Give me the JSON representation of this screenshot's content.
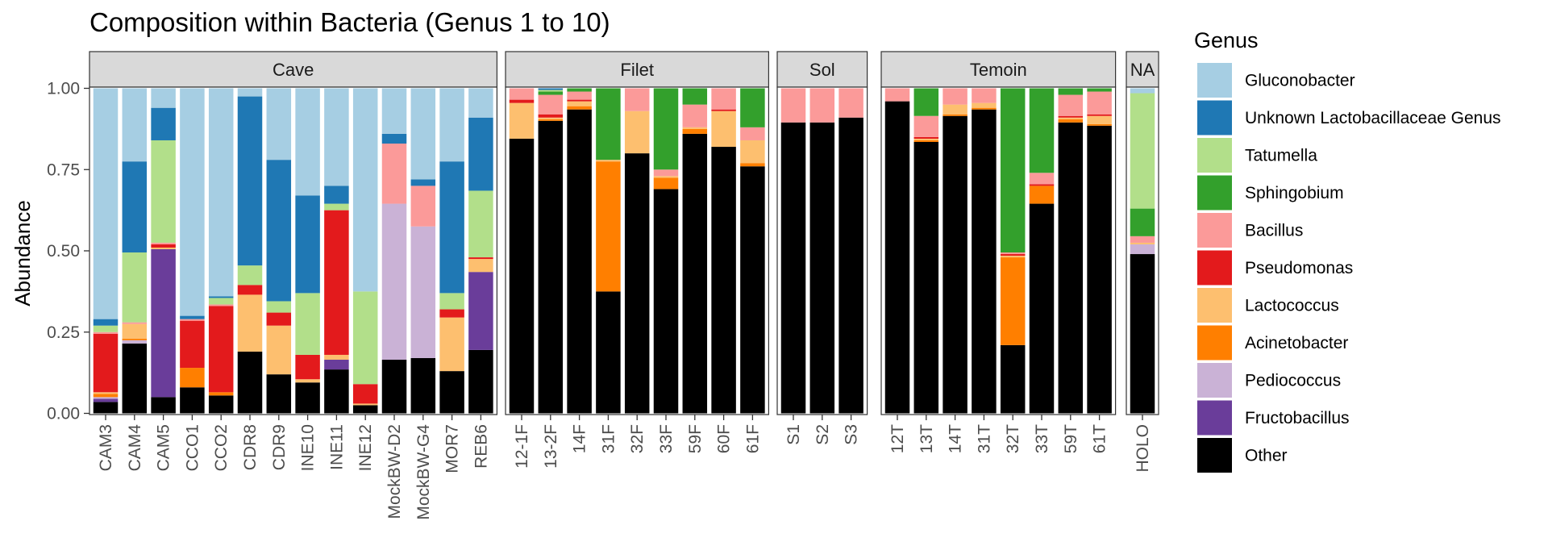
{
  "chart_data": {
    "type": "bar",
    "stacked": true,
    "title": "Composition within Bacteria (Genus 1 to 10)",
    "ylabel": "Abundance",
    "xlabel": "",
    "ylim": [
      0,
      1
    ],
    "yticks": [
      "0.00",
      "0.25",
      "0.50",
      "0.75",
      "1.00"
    ],
    "legend": {
      "title": "Genus",
      "position": "right",
      "items": [
        {
          "name": "Gluconobacter",
          "color": "#a6cee3"
        },
        {
          "name": "Unknown Lactobacillaceae Genus",
          "color": "#1f78b4"
        },
        {
          "name": "Tatumella",
          "color": "#b2df8a"
        },
        {
          "name": "Sphingobium",
          "color": "#33a02c"
        },
        {
          "name": "Bacillus",
          "color": "#fb9a99"
        },
        {
          "name": "Pseudomonas",
          "color": "#e31a1c"
        },
        {
          "name": "Lactococcus",
          "color": "#fdbf6f"
        },
        {
          "name": "Acinetobacter",
          "color": "#ff7f00"
        },
        {
          "name": "Pediococcus",
          "color": "#cab2d6"
        },
        {
          "name": "Fructobacillus",
          "color": "#6a3d9a"
        },
        {
          "name": "Other",
          "color": "#000000"
        }
      ]
    },
    "stack_order_bottom_to_top": [
      "Other",
      "Fructobacillus",
      "Pediococcus",
      "Acinetobacter",
      "Lactococcus",
      "Pseudomonas",
      "Bacillus",
      "Sphingobium",
      "Tatumella",
      "Unknown Lactobacillaceae Genus",
      "Gluconobacter"
    ],
    "facets": [
      {
        "label": "Cave",
        "samples": [
          {
            "name": "CAM3",
            "values": {
              "Other": 0.035,
              "Fructobacillus": 0.01,
              "Pediococcus": 0.005,
              "Acinetobacter": 0.01,
              "Lactococcus": 0.005,
              "Pseudomonas": 0.18,
              "Bacillus": 0.005,
              "Sphingobium": 0.0,
              "Tatumella": 0.02,
              "Unknown Lactobacillaceae Genus": 0.02,
              "Gluconobacter": 0.71
            }
          },
          {
            "name": "CAM4",
            "values": {
              "Other": 0.215,
              "Fructobacillus": 0.0,
              "Pediococcus": 0.01,
              "Acinetobacter": 0.005,
              "Lactococcus": 0.045,
              "Pseudomonas": 0.0,
              "Bacillus": 0.005,
              "Sphingobium": 0.0,
              "Tatumella": 0.215,
              "Unknown Lactobacillaceae Genus": 0.28,
              "Gluconobacter": 0.225
            }
          },
          {
            "name": "CAM5",
            "values": {
              "Other": 0.05,
              "Fructobacillus": 0.455,
              "Pediococcus": 0.0,
              "Acinetobacter": 0.0,
              "Lactococcus": 0.005,
              "Pseudomonas": 0.01,
              "Bacillus": 0.005,
              "Sphingobium": 0.0,
              "Tatumella": 0.315,
              "Unknown Lactobacillaceae Genus": 0.1,
              "Gluconobacter": 0.06
            }
          },
          {
            "name": "CCO1",
            "values": {
              "Other": 0.08,
              "Fructobacillus": 0.0,
              "Pediococcus": 0.0,
              "Acinetobacter": 0.06,
              "Lactococcus": 0.0,
              "Pseudomonas": 0.145,
              "Bacillus": 0.005,
              "Sphingobium": 0.0,
              "Tatumella": 0.0,
              "Unknown Lactobacillaceae Genus": 0.01,
              "Gluconobacter": 0.7
            }
          },
          {
            "name": "CCO2",
            "values": {
              "Other": 0.055,
              "Fructobacillus": 0.0,
              "Pediococcus": 0.0,
              "Acinetobacter": 0.01,
              "Lactococcus": 0.0,
              "Pseudomonas": 0.265,
              "Bacillus": 0.005,
              "Sphingobium": 0.0,
              "Tatumella": 0.02,
              "Unknown Lactobacillaceae Genus": 0.005,
              "Gluconobacter": 0.64
            }
          },
          {
            "name": "CDR8",
            "values": {
              "Other": 0.19,
              "Fructobacillus": 0.0,
              "Pediococcus": 0.0,
              "Acinetobacter": 0.0,
              "Lactococcus": 0.175,
              "Pseudomonas": 0.03,
              "Bacillus": 0.0,
              "Sphingobium": 0.0,
              "Tatumella": 0.06,
              "Unknown Lactobacillaceae Genus": 0.52,
              "Gluconobacter": 0.025
            }
          },
          {
            "name": "CDR9",
            "values": {
              "Other": 0.12,
              "Fructobacillus": 0.0,
              "Pediococcus": 0.0,
              "Acinetobacter": 0.0,
              "Lactococcus": 0.15,
              "Pseudomonas": 0.04,
              "Bacillus": 0.0,
              "Sphingobium": 0.0,
              "Tatumella": 0.035,
              "Unknown Lactobacillaceae Genus": 0.435,
              "Gluconobacter": 0.22
            }
          },
          {
            "name": "INE10",
            "values": {
              "Other": 0.095,
              "Fructobacillus": 0.0,
              "Pediococcus": 0.0,
              "Acinetobacter": 0.0,
              "Lactococcus": 0.01,
              "Pseudomonas": 0.075,
              "Bacillus": 0.0,
              "Sphingobium": 0.0,
              "Tatumella": 0.19,
              "Unknown Lactobacillaceae Genus": 0.3,
              "Gluconobacter": 0.33
            }
          },
          {
            "name": "INE11",
            "values": {
              "Other": 0.135,
              "Fructobacillus": 0.03,
              "Pediococcus": 0.0,
              "Acinetobacter": 0.0,
              "Lactococcus": 0.015,
              "Pseudomonas": 0.445,
              "Bacillus": 0.0,
              "Sphingobium": 0.0,
              "Tatumella": 0.02,
              "Unknown Lactobacillaceae Genus": 0.055,
              "Gluconobacter": 0.3
            }
          },
          {
            "name": "INE12",
            "values": {
              "Other": 0.025,
              "Fructobacillus": 0.0,
              "Pediococcus": 0.0,
              "Acinetobacter": 0.0,
              "Lactococcus": 0.005,
              "Pseudomonas": 0.06,
              "Bacillus": 0.0,
              "Sphingobium": 0.0,
              "Tatumella": 0.285,
              "Unknown Lactobacillaceae Genus": 0.0,
              "Gluconobacter": 0.625
            }
          },
          {
            "name": "MockBW-D2",
            "values": {
              "Other": 0.165,
              "Fructobacillus": 0.0,
              "Pediococcus": 0.48,
              "Acinetobacter": 0.0,
              "Lactococcus": 0.0,
              "Pseudomonas": 0.0,
              "Bacillus": 0.185,
              "Sphingobium": 0.0,
              "Tatumella": 0.0,
              "Unknown Lactobacillaceae Genus": 0.03,
              "Gluconobacter": 0.14
            }
          },
          {
            "name": "MockBW-G4",
            "values": {
              "Other": 0.17,
              "Fructobacillus": 0.0,
              "Pediococcus": 0.405,
              "Acinetobacter": 0.0,
              "Lactococcus": 0.0,
              "Pseudomonas": 0.0,
              "Bacillus": 0.125,
              "Sphingobium": 0.0,
              "Tatumella": 0.0,
              "Unknown Lactobacillaceae Genus": 0.02,
              "Gluconobacter": 0.28
            }
          },
          {
            "name": "MOR7",
            "values": {
              "Other": 0.13,
              "Fructobacillus": 0.0,
              "Pediococcus": 0.0,
              "Acinetobacter": 0.0,
              "Lactococcus": 0.165,
              "Pseudomonas": 0.025,
              "Bacillus": 0.0,
              "Sphingobium": 0.0,
              "Tatumella": 0.05,
              "Unknown Lactobacillaceae Genus": 0.405,
              "Gluconobacter": 0.225
            }
          },
          {
            "name": "REB6",
            "values": {
              "Other": 0.195,
              "Fructobacillus": 0.24,
              "Pediococcus": 0.0,
              "Acinetobacter": 0.0,
              "Lactococcus": 0.04,
              "Pseudomonas": 0.005,
              "Bacillus": 0.0,
              "Sphingobium": 0.0,
              "Tatumella": 0.205,
              "Unknown Lactobacillaceae Genus": 0.225,
              "Gluconobacter": 0.09
            }
          }
        ]
      },
      {
        "label": "Filet",
        "samples": [
          {
            "name": "12-1F",
            "values": {
              "Other": 0.845,
              "Fructobacillus": 0.0,
              "Pediococcus": 0.0,
              "Acinetobacter": 0.0,
              "Lactococcus": 0.11,
              "Pseudomonas": 0.01,
              "Bacillus": 0.035,
              "Sphingobium": 0.0,
              "Tatumella": 0.0,
              "Unknown Lactobacillaceae Genus": 0.0,
              "Gluconobacter": 0.0
            }
          },
          {
            "name": "13-2F",
            "values": {
              "Other": 0.9,
              "Fructobacillus": 0.0,
              "Pediococcus": 0.0,
              "Acinetobacter": 0.005,
              "Lactococcus": 0.005,
              "Pseudomonas": 0.01,
              "Bacillus": 0.06,
              "Sphingobium": 0.01,
              "Tatumella": 0.005,
              "Unknown Lactobacillaceae Genus": 0.005,
              "Gluconobacter": 0.0
            }
          },
          {
            "name": "14F",
            "values": {
              "Other": 0.935,
              "Fructobacillus": 0.0,
              "Pediococcus": 0.0,
              "Acinetobacter": 0.01,
              "Lactococcus": 0.015,
              "Pseudomonas": 0.005,
              "Bacillus": 0.025,
              "Sphingobium": 0.01,
              "Tatumella": 0.0,
              "Unknown Lactobacillaceae Genus": 0.0,
              "Gluconobacter": 0.0
            }
          },
          {
            "name": "31F",
            "values": {
              "Other": 0.375,
              "Fructobacillus": 0.0,
              "Pediococcus": 0.0,
              "Acinetobacter": 0.4,
              "Lactococcus": 0.005,
              "Pseudomonas": 0.0,
              "Bacillus": 0.0,
              "Sphingobium": 0.22,
              "Tatumella": 0.0,
              "Unknown Lactobacillaceae Genus": 0.0,
              "Gluconobacter": 0.0
            }
          },
          {
            "name": "32F",
            "values": {
              "Other": 0.8,
              "Fructobacillus": 0.0,
              "Pediococcus": 0.0,
              "Acinetobacter": 0.0,
              "Lactococcus": 0.13,
              "Pseudomonas": 0.0,
              "Bacillus": 0.07,
              "Sphingobium": 0.0,
              "Tatumella": 0.0,
              "Unknown Lactobacillaceae Genus": 0.0,
              "Gluconobacter": 0.0
            }
          },
          {
            "name": "33F",
            "values": {
              "Other": 0.69,
              "Fructobacillus": 0.0,
              "Pediococcus": 0.0,
              "Acinetobacter": 0.035,
              "Lactococcus": 0.005,
              "Pseudomonas": 0.0,
              "Bacillus": 0.02,
              "Sphingobium": 0.25,
              "Tatumella": 0.0,
              "Unknown Lactobacillaceae Genus": 0.0,
              "Gluconobacter": 0.0
            }
          },
          {
            "name": "59F",
            "values": {
              "Other": 0.86,
              "Fructobacillus": 0.0,
              "Pediococcus": 0.0,
              "Acinetobacter": 0.015,
              "Lactococcus": 0.005,
              "Pseudomonas": 0.0,
              "Bacillus": 0.07,
              "Sphingobium": 0.05,
              "Tatumella": 0.0,
              "Unknown Lactobacillaceae Genus": 0.0,
              "Gluconobacter": 0.0
            }
          },
          {
            "name": "60F",
            "values": {
              "Other": 0.82,
              "Fructobacillus": 0.0,
              "Pediococcus": 0.0,
              "Acinetobacter": 0.0,
              "Lactococcus": 0.11,
              "Pseudomonas": 0.005,
              "Bacillus": 0.065,
              "Sphingobium": 0.0,
              "Tatumella": 0.0,
              "Unknown Lactobacillaceae Genus": 0.0,
              "Gluconobacter": 0.0
            }
          },
          {
            "name": "61F",
            "values": {
              "Other": 0.76,
              "Fructobacillus": 0.0,
              "Pediococcus": 0.0,
              "Acinetobacter": 0.01,
              "Lactococcus": 0.07,
              "Pseudomonas": 0.0,
              "Bacillus": 0.04,
              "Sphingobium": 0.12,
              "Tatumella": 0.0,
              "Unknown Lactobacillaceae Genus": 0.0,
              "Gluconobacter": 0.0
            }
          }
        ]
      },
      {
        "label": "Sol",
        "samples": [
          {
            "name": "S1",
            "values": {
              "Other": 0.895,
              "Fructobacillus": 0.0,
              "Pediococcus": 0.0,
              "Acinetobacter": 0.0,
              "Lactococcus": 0.0,
              "Pseudomonas": 0.0,
              "Bacillus": 0.105,
              "Sphingobium": 0.0,
              "Tatumella": 0.0,
              "Unknown Lactobacillaceae Genus": 0.0,
              "Gluconobacter": 0.0
            }
          },
          {
            "name": "S2",
            "values": {
              "Other": 0.895,
              "Fructobacillus": 0.0,
              "Pediococcus": 0.0,
              "Acinetobacter": 0.0,
              "Lactococcus": 0.0,
              "Pseudomonas": 0.0,
              "Bacillus": 0.105,
              "Sphingobium": 0.0,
              "Tatumella": 0.0,
              "Unknown Lactobacillaceae Genus": 0.0,
              "Gluconobacter": 0.0
            }
          },
          {
            "name": "S3",
            "values": {
              "Other": 0.91,
              "Fructobacillus": 0.0,
              "Pediococcus": 0.0,
              "Acinetobacter": 0.0,
              "Lactococcus": 0.0,
              "Pseudomonas": 0.0,
              "Bacillus": 0.09,
              "Sphingobium": 0.0,
              "Tatumella": 0.0,
              "Unknown Lactobacillaceae Genus": 0.0,
              "Gluconobacter": 0.0
            }
          }
        ]
      },
      {
        "label": "Temoin",
        "samples": [
          {
            "name": "12T",
            "values": {
              "Other": 0.96,
              "Fructobacillus": 0.0,
              "Pediococcus": 0.0,
              "Acinetobacter": 0.0,
              "Lactococcus": 0.0,
              "Pseudomonas": 0.0,
              "Bacillus": 0.04,
              "Sphingobium": 0.0,
              "Tatumella": 0.0,
              "Unknown Lactobacillaceae Genus": 0.0,
              "Gluconobacter": 0.0
            }
          },
          {
            "name": "13T",
            "values": {
              "Other": 0.835,
              "Fructobacillus": 0.0,
              "Pediococcus": 0.0,
              "Acinetobacter": 0.005,
              "Lactococcus": 0.005,
              "Pseudomonas": 0.005,
              "Bacillus": 0.065,
              "Sphingobium": 0.085,
              "Tatumella": 0.0,
              "Unknown Lactobacillaceae Genus": 0.0,
              "Gluconobacter": 0.0
            }
          },
          {
            "name": "14T",
            "values": {
              "Other": 0.915,
              "Fructobacillus": 0.0,
              "Pediococcus": 0.0,
              "Acinetobacter": 0.005,
              "Lactococcus": 0.03,
              "Pseudomonas": 0.0,
              "Bacillus": 0.05,
              "Sphingobium": 0.0,
              "Tatumella": 0.0,
              "Unknown Lactobacillaceae Genus": 0.0,
              "Gluconobacter": 0.0
            }
          },
          {
            "name": "31T",
            "values": {
              "Other": 0.935,
              "Fructobacillus": 0.0,
              "Pediococcus": 0.0,
              "Acinetobacter": 0.005,
              "Lactococcus": 0.015,
              "Pseudomonas": 0.0,
              "Bacillus": 0.045,
              "Sphingobium": 0.0,
              "Tatumella": 0.0,
              "Unknown Lactobacillaceae Genus": 0.0,
              "Gluconobacter": 0.0
            }
          },
          {
            "name": "32T",
            "values": {
              "Other": 0.21,
              "Fructobacillus": 0.0,
              "Pediococcus": 0.0,
              "Acinetobacter": 0.27,
              "Lactococcus": 0.005,
              "Pseudomonas": 0.005,
              "Bacillus": 0.005,
              "Sphingobium": 0.505,
              "Tatumella": 0.0,
              "Unknown Lactobacillaceae Genus": 0.0,
              "Gluconobacter": 0.0
            }
          },
          {
            "name": "33T",
            "values": {
              "Other": 0.645,
              "Fructobacillus": 0.0,
              "Pediococcus": 0.0,
              "Acinetobacter": 0.055,
              "Lactococcus": 0.0,
              "Pseudomonas": 0.005,
              "Bacillus": 0.035,
              "Sphingobium": 0.26,
              "Tatumella": 0.0,
              "Unknown Lactobacillaceae Genus": 0.0,
              "Gluconobacter": 0.0
            }
          },
          {
            "name": "59T",
            "values": {
              "Other": 0.895,
              "Fructobacillus": 0.0,
              "Pediococcus": 0.0,
              "Acinetobacter": 0.01,
              "Lactococcus": 0.005,
              "Pseudomonas": 0.005,
              "Bacillus": 0.065,
              "Sphingobium": 0.02,
              "Tatumella": 0.0,
              "Unknown Lactobacillaceae Genus": 0.0,
              "Gluconobacter": 0.0
            }
          },
          {
            "name": "61T",
            "values": {
              "Other": 0.885,
              "Fructobacillus": 0.0,
              "Pediococcus": 0.0,
              "Acinetobacter": 0.005,
              "Lactococcus": 0.025,
              "Pseudomonas": 0.005,
              "Bacillus": 0.07,
              "Sphingobium": 0.01,
              "Tatumella": 0.0,
              "Unknown Lactobacillaceae Genus": 0.0,
              "Gluconobacter": 0.0
            }
          }
        ]
      },
      {
        "label": "NA",
        "samples": [
          {
            "name": "HOLO",
            "values": {
              "Other": 0.49,
              "Fructobacillus": 0.0,
              "Pediococcus": 0.03,
              "Acinetobacter": 0.0,
              "Lactococcus": 0.005,
              "Pseudomonas": 0.0,
              "Bacillus": 0.02,
              "Sphingobium": 0.085,
              "Tatumella": 0.355,
              "Unknown Lactobacillaceae Genus": 0.0,
              "Gluconobacter": 0.015
            }
          }
        ]
      }
    ]
  }
}
